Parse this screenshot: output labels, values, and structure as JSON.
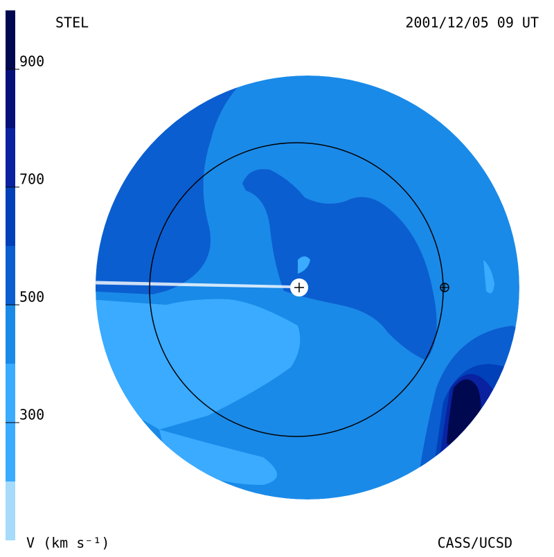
{
  "chart_data": {
    "type": "heatmap",
    "title": "STEL",
    "subtitle": "2001/12/05 09 UT",
    "credit": "CASS/UCSD",
    "colorbar_label": "V (km s⁻¹)",
    "ylim": [
      100,
      1000
    ],
    "yticks": [
      300,
      500,
      700,
      900
    ],
    "levels": [
      100,
      200,
      300,
      400,
      500,
      600,
      700,
      800,
      900,
      1000
    ],
    "colors": [
      "#a6dbfa",
      "#3aabff",
      "#3aabff",
      "#1a8ae8",
      "#0b5ed0",
      "#0040b8",
      "#0a22a0",
      "#06107a",
      "#000850"
    ]
  }
}
